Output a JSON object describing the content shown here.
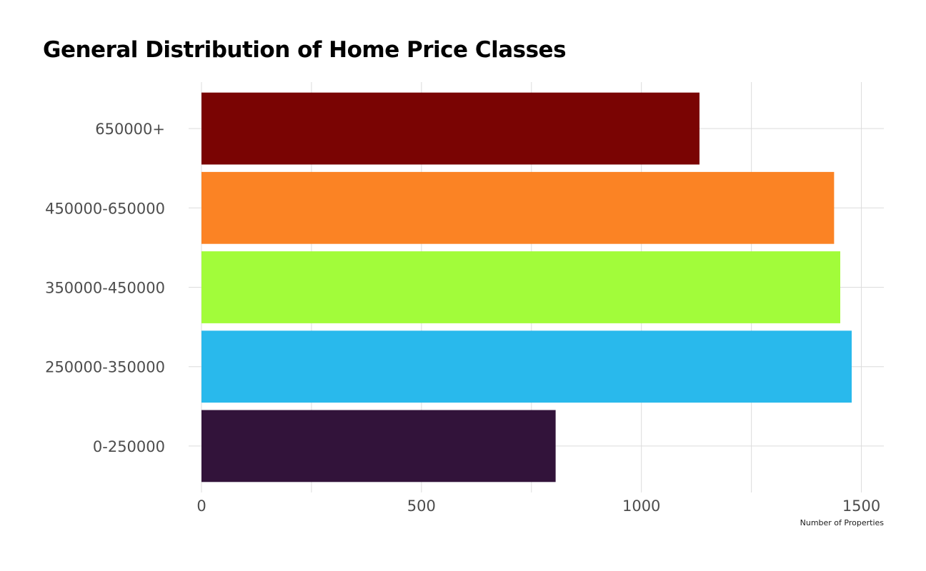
{
  "chart_data": {
    "type": "bar",
    "orientation": "horizontal",
    "title": "General Distribution of Home Price Classes",
    "xlabel": "Number of Properties",
    "ylabel": "",
    "categories": [
      "0-250000",
      "250000-350000",
      "350000-450000",
      "450000-650000",
      "650000+"
    ],
    "values": [
      805,
      1478,
      1452,
      1438,
      1132
    ],
    "colors": [
      "#32133a",
      "#29b9ec",
      "#a2fc3a",
      "#fb8324",
      "#7a0403"
    ],
    "xlim": [
      0,
      1550
    ],
    "xticks": [
      0,
      500,
      1000,
      1500
    ],
    "grid": true,
    "legend": "none"
  }
}
